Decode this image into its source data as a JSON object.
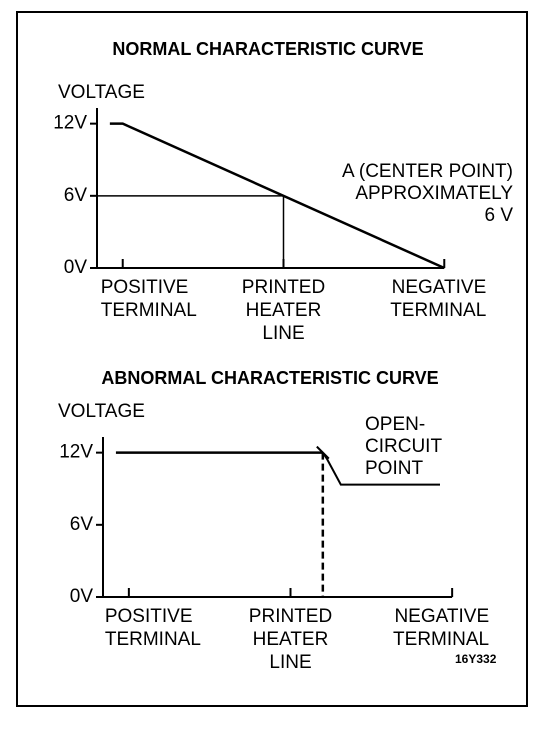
{
  "chart_data": [
    {
      "type": "line",
      "title": "NORMAL CHARACTERISTIC CURVE",
      "ylabel": "VOLTAGE",
      "xlim": [
        -8,
        108
      ],
      "ylim": [
        0,
        13.3
      ],
      "xticks": [
        {
          "value": 0,
          "label": "POSITIVE\nTERMINAL"
        },
        {
          "value": 50,
          "label": "PRINTED\nHEATER\nLINE"
        },
        {
          "value": 100,
          "label": "NEGATIVE\nTERMINAL"
        }
      ],
      "yticks": [
        {
          "value": 0,
          "label": "0V"
        },
        {
          "value": 6,
          "label": "6V"
        },
        {
          "value": 12,
          "label": "12V"
        }
      ],
      "series": [
        {
          "x": [
            -4,
            0,
            100
          ],
          "values": [
            12,
            12,
            0
          ],
          "color": "#000000"
        }
      ],
      "reference_point": {
        "x": 50,
        "y": 6
      },
      "annotation": "A (CENTER POINT)\nAPPROXIMATELY\n6 V"
    },
    {
      "type": "line",
      "title": "ABNORMAL CHARACTERISTIC CURVE",
      "ylabel": "VOLTAGE",
      "xlim": [
        -8,
        108
      ],
      "ylim": [
        0,
        13.3
      ],
      "xticks": [
        {
          "value": 0,
          "label": "POSITIVE\nTERMINAL"
        },
        {
          "value": 50,
          "label": "PRINTED\nHEATER\nLINE"
        },
        {
          "value": 100,
          "label": "NEGATIVE\nTERMINAL"
        }
      ],
      "yticks": [
        {
          "value": 0,
          "label": "0V"
        },
        {
          "value": 6,
          "label": "6V"
        },
        {
          "value": 12,
          "label": "12V"
        }
      ],
      "series": [
        {
          "x": [
            -4,
            60
          ],
          "values": [
            12,
            12
          ],
          "color": "#000000"
        },
        {
          "x": [
            60,
            60
          ],
          "values": [
            12,
            0
          ],
          "color": "#000000",
          "dashed": true
        }
      ],
      "annotation": "OPEN-\nCIRCUIT\nPOINT",
      "figure_code": "16Y332"
    }
  ]
}
